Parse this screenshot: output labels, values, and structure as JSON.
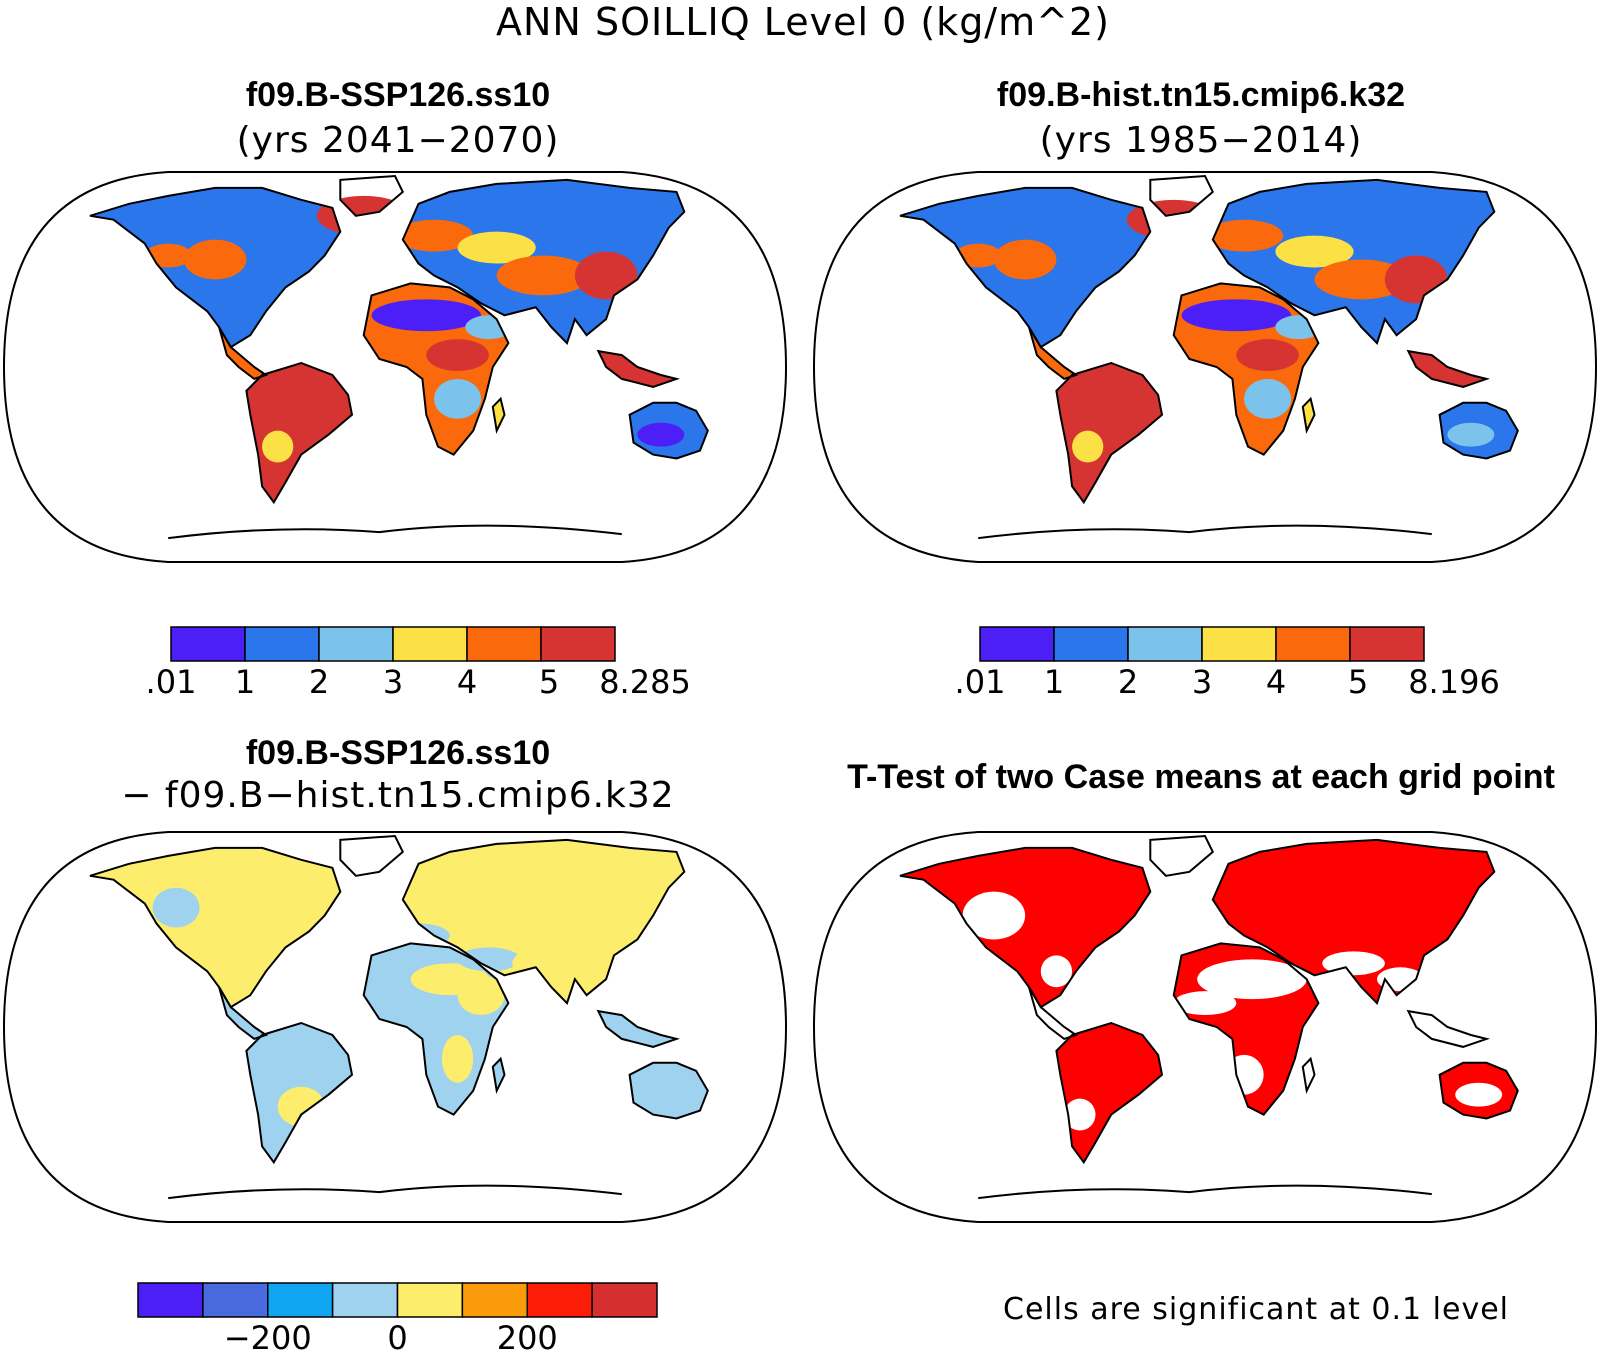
{
  "title": "ANN SOILLIQ Level 0 (kg/m^2)",
  "panels": [
    {
      "title": "f09.B-SSP126.ss10",
      "subtitle": "(yrs 2041−2070)",
      "style": "abs-a"
    },
    {
      "title": "f09.B-hist.tn15.cmip6.k32",
      "subtitle": "(yrs 1985−2014)",
      "style": "abs-b"
    },
    {
      "title": "f09.B-SSP126.ss10",
      "subtitle": "− f09.B−hist.tn15.cmip6.k32",
      "style": "diff"
    },
    {
      "title": "T-Test of two Case means at each grid point",
      "subtitle": "",
      "style": "ttest"
    }
  ],
  "colorbars": [
    {
      "colors": [
        "#4b1ff5",
        "#2a76ea",
        "#7cc3ec",
        "#fbe046",
        "#fa6a0c",
        "#d63433"
      ],
      "labels": [
        ".01",
        "1",
        "2",
        "3",
        "4",
        "5",
        "8.285"
      ]
    },
    {
      "colors": [
        "#4b1ff5",
        "#2a76ea",
        "#7cc3ec",
        "#fbe046",
        "#fa6a0c",
        "#d63433"
      ],
      "labels": [
        ".01",
        "1",
        "2",
        "3",
        "4",
        "5",
        "8.196"
      ]
    },
    {
      "colors": [
        "#4b1ff5",
        "#4a6be0",
        "#0fa5f0",
        "#9ed2ee",
        "#fced6d",
        "#fb9b0b",
        "#fb1d07",
        "#d62f2f"
      ],
      "labels": [
        "−200",
        "0",
        "200"
      ]
    }
  ],
  "significance_note": "Cells are significant at 0.1 level",
  "colors": {
    "significant": "#ff0000",
    "coastline": "#000000"
  }
}
